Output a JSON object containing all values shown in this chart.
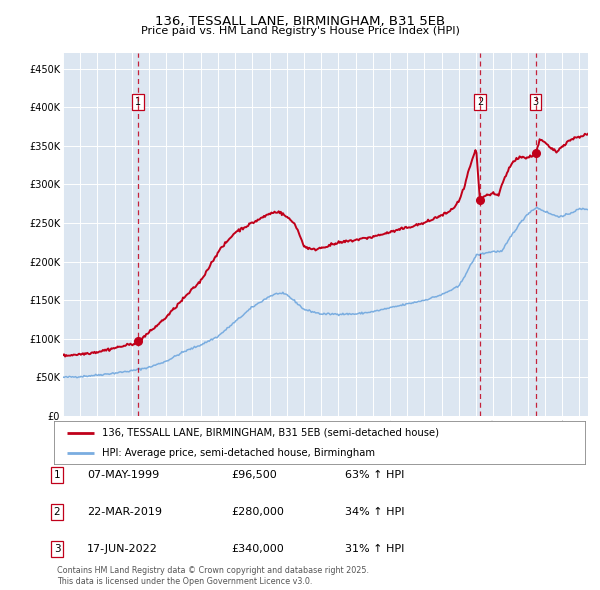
{
  "title1": "136, TESSALL LANE, BIRMINGHAM, B31 5EB",
  "title2": "Price paid vs. HM Land Registry's House Price Index (HPI)",
  "bg_color": "#dce6f1",
  "red_line_color": "#c0001a",
  "blue_line_color": "#7aade0",
  "dashed_line_color": "#c0001a",
  "sale_points": [
    {
      "date_num": 1999.35,
      "price": 96500,
      "label": "1"
    },
    {
      "date_num": 2019.22,
      "price": 280000,
      "label": "2"
    },
    {
      "date_num": 2022.46,
      "price": 340000,
      "label": "3"
    }
  ],
  "table_rows": [
    {
      "num": "1",
      "date": "07-MAY-1999",
      "price": "£96,500",
      "change": "63% ↑ HPI"
    },
    {
      "num": "2",
      "date": "22-MAR-2019",
      "price": "£280,000",
      "change": "34% ↑ HPI"
    },
    {
      "num": "3",
      "date": "17-JUN-2022",
      "price": "£340,000",
      "change": "31% ↑ HPI"
    }
  ],
  "legend_entries": [
    "136, TESSALL LANE, BIRMINGHAM, B31 5EB (semi-detached house)",
    "HPI: Average price, semi-detached house, Birmingham"
  ],
  "footer": "Contains HM Land Registry data © Crown copyright and database right 2025.\nThis data is licensed under the Open Government Licence v3.0.",
  "yticks": [
    0,
    50000,
    100000,
    150000,
    200000,
    250000,
    300000,
    350000,
    400000,
    450000
  ],
  "xmin": 1995.0,
  "xmax": 2025.5,
  "ylim_top": 470000
}
